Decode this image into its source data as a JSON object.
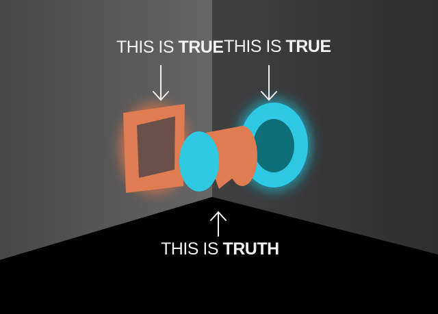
{
  "labels": {
    "left": {
      "prefix": "THIS IS ",
      "emphasis": "TRUE"
    },
    "right": {
      "prefix": "THIS IS ",
      "emphasis": "TRUE"
    },
    "bottom": {
      "prefix": "THIS IS ",
      "emphasis": "TRUTH"
    }
  },
  "colors": {
    "left_wall": "#5a5a5a",
    "right_wall": "#3c3c3c",
    "floor": "#000000",
    "orange": "#e07c52",
    "cyan": "#2ec8e2",
    "teal_inner": "#0f6f78",
    "text": "#f2f2f2"
  },
  "icons": [
    "arrow-down-icon",
    "arrow-down-icon",
    "arrow-up-icon"
  ]
}
